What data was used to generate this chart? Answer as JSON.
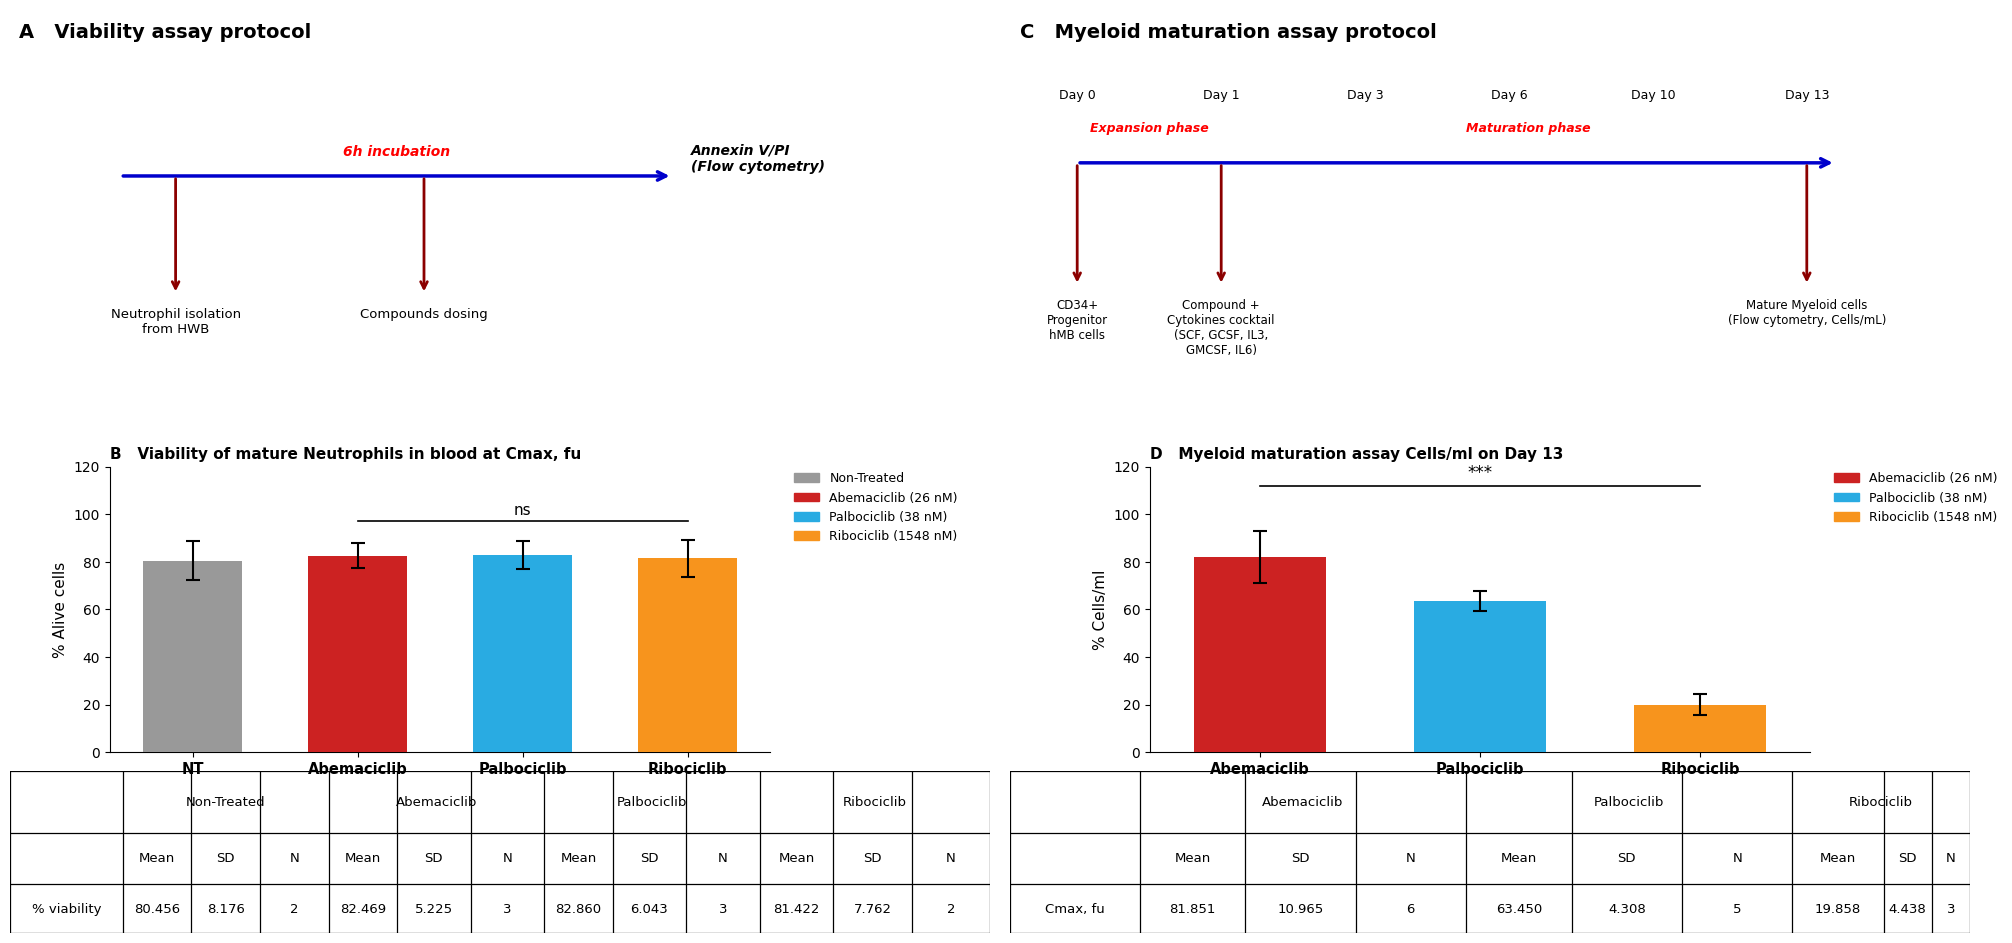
{
  "panel_A_title": "A   Viability assay protocol",
  "panel_C_title": "C   Myeloid maturation assay protocol",
  "panel_B_title": "B   Viability of mature Neutrophils in blood at Cmax, fu",
  "panel_D_title": "D   Myeloid maturation assay Cells/ml on Day 13",
  "bar_B_categories": [
    "NT",
    "Abemaciclib",
    "Palbociclib",
    "Ribociclib"
  ],
  "bar_B_values": [
    80.456,
    82.469,
    82.86,
    81.422
  ],
  "bar_B_errors": [
    8.176,
    5.225,
    6.043,
    7.762
  ],
  "bar_B_colors": [
    "#999999",
    "#CC2222",
    "#29ABE2",
    "#F7941D"
  ],
  "bar_B_ylabel": "% Alive cells",
  "bar_B_ylim": [
    0,
    120
  ],
  "bar_B_yticks": [
    0,
    20,
    40,
    60,
    80,
    100,
    120
  ],
  "bar_D_categories": [
    "Abemaciclib",
    "Palbociclib",
    "Ribociclib"
  ],
  "bar_D_values": [
    81.851,
    63.45,
    19.858
  ],
  "bar_D_errors": [
    10.965,
    4.308,
    4.438
  ],
  "bar_D_colors": [
    "#CC2222",
    "#29ABE2",
    "#F7941D"
  ],
  "bar_D_ylabel": "% Cells/ml",
  "bar_D_ylim": [
    0,
    120
  ],
  "bar_D_yticks": [
    0,
    20,
    40,
    60,
    80,
    100,
    120
  ],
  "legend_B_labels": [
    "Non-Treated",
    "Abemaciclib (26 nM)",
    "Palbociclib (38 nM)",
    "Ribociclib (1548 nM)"
  ],
  "legend_B_colors": [
    "#999999",
    "#CC2222",
    "#29ABE2",
    "#F7941D"
  ],
  "legend_D_labels": [
    "Abemaciclib (26 nM)",
    "Palbociclib (38 nM)",
    "Ribociclib (1548 nM)"
  ],
  "legend_D_colors": [
    "#CC2222",
    "#29ABE2",
    "#F7941D"
  ],
  "ns_text": "ns",
  "sig_text": "***",
  "arrow_blue_color": "#0000CC",
  "arrow_red_color": "#8B0000",
  "incubation_text": "6h incubation",
  "annexin_text": "Annexin V/PI\n(Flow cytometry)",
  "day0_text": "Day 0",
  "day1_text": "Day 1",
  "day3_text": "Day 3",
  "day6_text": "Day 6",
  "day10_text": "Day 10",
  "day13_text": "Day 13",
  "expansion_text": "Expansion phase",
  "maturation_text": "Maturation phase",
  "cd34_text": "CD34+\nProgenitor\nhMB cells",
  "compound_text": "Compound +\nCytokines cocktail\n(SCF, GCSF, IL3,\nGMCSF, IL6)",
  "mature_text": "Mature Myeloid cells\n(Flow cytometry, Cells/mL)",
  "neutrophil_text": "Neutrophil isolation\nfrom HWB",
  "compounds_text": "Compounds dosing",
  "table_B_row_label": "% viability",
  "table_B_data": [
    "80.456",
    "8.176",
    "2",
    "82.469",
    "5.225",
    "3",
    "82.860",
    "6.043",
    "3",
    "81.422",
    "7.762",
    "2"
  ],
  "table_B_subheaders": [
    "Mean",
    "SD",
    "N",
    "Mean",
    "SD",
    "N",
    "Mean",
    "SD",
    "N",
    "Mean",
    "SD",
    "N"
  ],
  "table_B_groups": [
    "Non-Treated",
    "Abemaciclib",
    "Palbociclib",
    "Ribociclib"
  ],
  "table_D_row_label": "Cmax, fu",
  "table_D_data": [
    "81.851",
    "10.965",
    "6",
    "63.450",
    "4.308",
    "5",
    "19.858",
    "4.438",
    "3"
  ],
  "table_D_subheaders": [
    "Mean",
    "SD",
    "N",
    "Mean",
    "SD",
    "N",
    "Mean",
    "SD",
    "N"
  ],
  "table_D_groups": [
    "Abemaciclib",
    "Palbociclib",
    "Ribociclib"
  ]
}
